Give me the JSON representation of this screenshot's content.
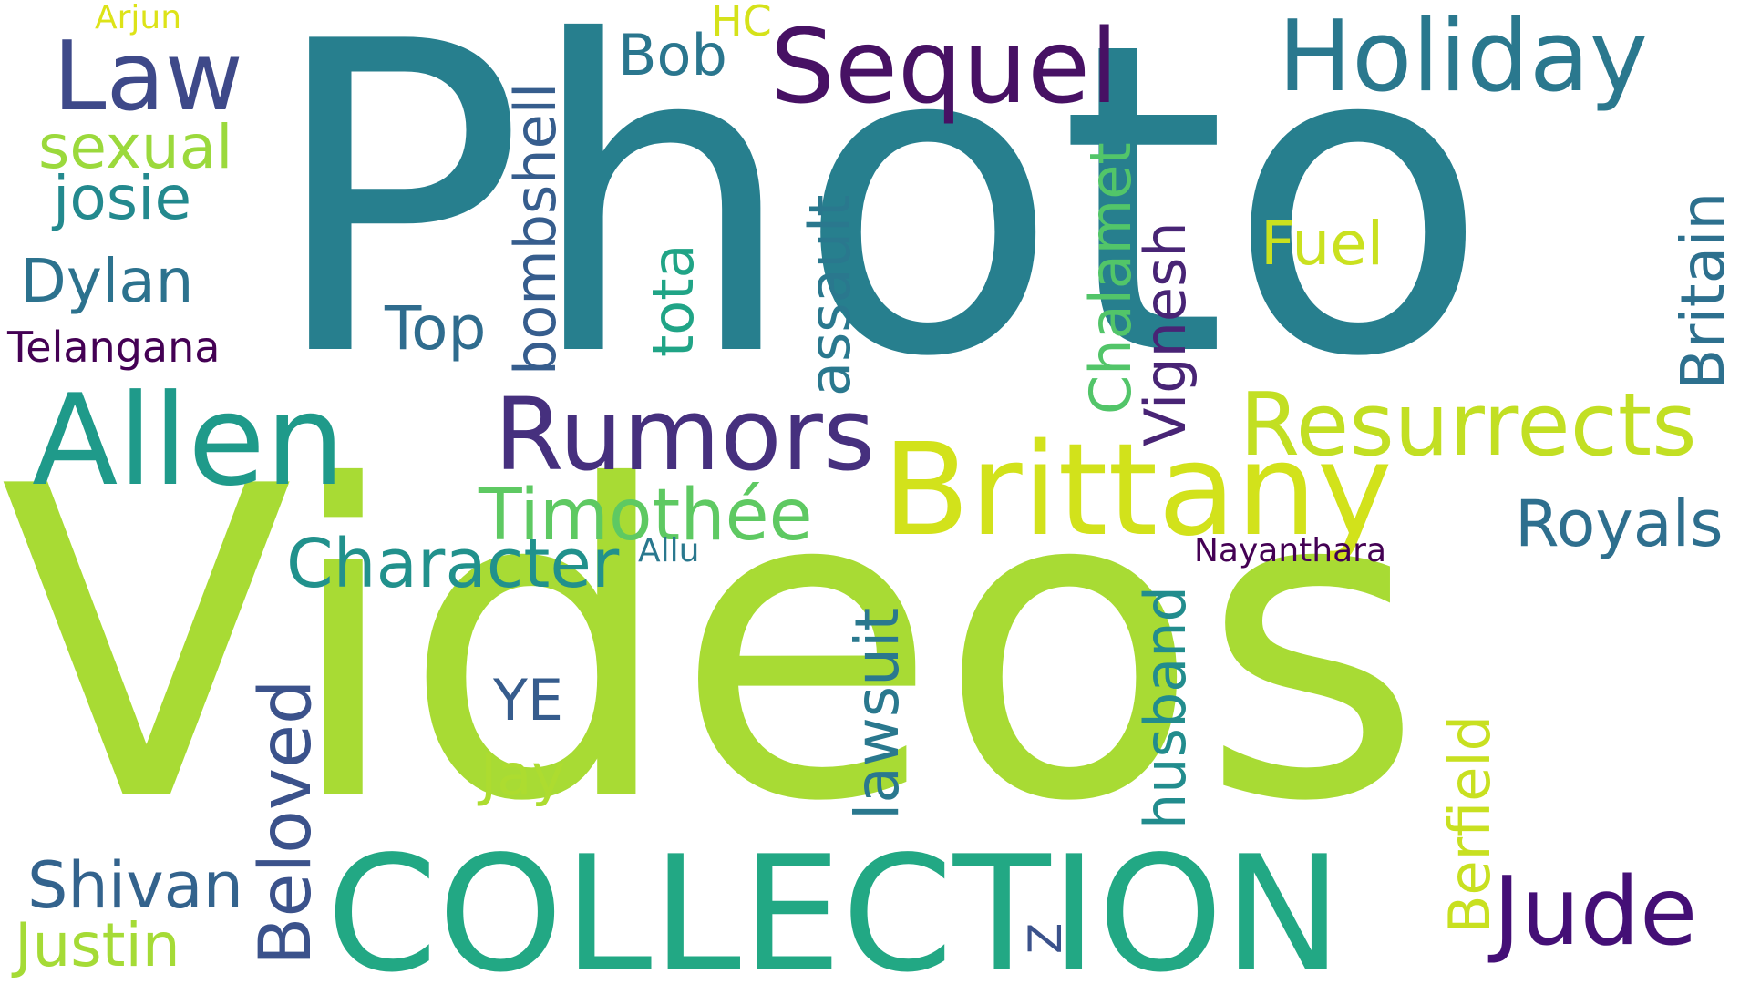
{
  "cloud": {
    "background": "#ffffff",
    "words": {
      "photo": {
        "text": "Photo",
        "color": "#277f8e"
      },
      "videos": {
        "text": "Videos",
        "color": "#a8db34"
      },
      "collection": {
        "text": "COLLECTION",
        "color": "#22a884"
      },
      "brittany": {
        "text": "Brittany",
        "color": "#d2e21b"
      },
      "allen": {
        "text": "Allen",
        "color": "#1f9a8a"
      },
      "rumors": {
        "text": "Rumors",
        "color": "#46307e"
      },
      "sequel": {
        "text": "Sequel",
        "color": "#471164"
      },
      "holiday": {
        "text": "Holiday",
        "color": "#2a788e"
      },
      "law": {
        "text": "Law",
        "color": "#3e4989"
      },
      "resurrects": {
        "text": "Resurrects",
        "color": "#c2df23"
      },
      "jude": {
        "text": "Jude",
        "color": "#440f76"
      },
      "timothee": {
        "text": "Timothée",
        "color": "#5ec962"
      },
      "character": {
        "text": "Character",
        "color": "#21918c"
      },
      "royals": {
        "text": "Royals",
        "color": "#2e6f8e"
      },
      "shivan": {
        "text": "Shivan",
        "color": "#33638d"
      },
      "justin": {
        "text": "Justin",
        "color": "#a5db36"
      },
      "dylan": {
        "text": "Dylan",
        "color": "#2c728e"
      },
      "josie": {
        "text": "josie",
        "color": "#23898e"
      },
      "sexual": {
        "text": "sexual",
        "color": "#9bd93c"
      },
      "top": {
        "text": "Top",
        "color": "#2f6c8e"
      },
      "fuel": {
        "text": "Fuel",
        "color": "#cae11f"
      },
      "bob": {
        "text": "Bob",
        "color": "#2a768e"
      },
      "jay": {
        "text": "Jay",
        "color": "#addc30"
      },
      "ye": {
        "text": "YE",
        "color": "#365c8d"
      },
      "telangana": {
        "text": "Telangana",
        "color": "#440154"
      },
      "nayanthara": {
        "text": "Nayanthara",
        "color": "#440154"
      },
      "allu": {
        "text": "Allu",
        "color": "#2a788e"
      },
      "arjun": {
        "text": "Arjun",
        "color": "#dde318"
      },
      "hc": {
        "text": "HC",
        "color": "#d5e21a"
      },
      "bombshell": {
        "text": "bombshell",
        "color": "#365d8d"
      },
      "tota": {
        "text": "tota",
        "color": "#20a486"
      },
      "assault": {
        "text": "assault",
        "color": "#2a788e"
      },
      "chalamet": {
        "text": "Chalamet",
        "color": "#52c569"
      },
      "vignesh": {
        "text": "Vignesh",
        "color": "#482475"
      },
      "britain": {
        "text": "Britain",
        "color": "#2d708e"
      },
      "beloved": {
        "text": "Beloved",
        "color": "#3b528b"
      },
      "lawsuit": {
        "text": "lawsuit",
        "color": "#2a788e"
      },
      "husband": {
        "text": "husband",
        "color": "#228c8d"
      },
      "berfield": {
        "text": "Berfield",
        "color": "#c8e020"
      },
      "z": {
        "text": "Z",
        "color": "#3b528b"
      }
    }
  }
}
